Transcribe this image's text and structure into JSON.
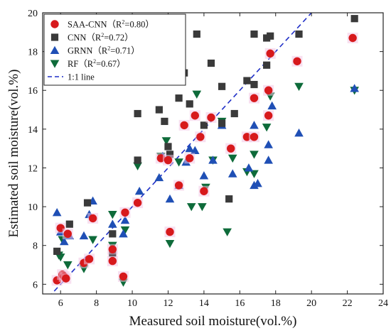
{
  "chart_data": {
    "type": "scatter",
    "xlabel": "Measured soil moisture(vol.%)",
    "ylabel": "Estimated soil moisture(vol.%)",
    "xlim": [
      5,
      24
    ],
    "ylim": [
      5.5,
      20
    ],
    "xticks": [
      "6",
      "8",
      "10",
      "12",
      "14",
      "16",
      "18",
      "20",
      "22",
      "24"
    ],
    "yticks": [
      "6",
      "8",
      "10",
      "12",
      "14",
      "16",
      "18",
      "20"
    ],
    "grid": false,
    "legend_position": "top-left",
    "reference_line": {
      "name": "1:1 line",
      "color": "#1f2fc7",
      "style": "dashed"
    },
    "series": [
      {
        "name": "SAA-CNN",
        "r2_label": "R",
        "r2_value": "=0.80）",
        "r2_prefix": "（",
        "marker": "circle",
        "color": "#d7191c",
        "points": [
          [
            5.8,
            6.2
          ],
          [
            6.0,
            8.9
          ],
          [
            6.1,
            6.5
          ],
          [
            6.2,
            6.4
          ],
          [
            6.3,
            6.3
          ],
          [
            6.4,
            8.6
          ],
          [
            7.3,
            7.1
          ],
          [
            7.6,
            7.3
          ],
          [
            7.8,
            9.4
          ],
          [
            8.9,
            7.2
          ],
          [
            8.9,
            7.8
          ],
          [
            9.5,
            6.4
          ],
          [
            9.6,
            9.7
          ],
          [
            10.3,
            10.2
          ],
          [
            11.6,
            12.5
          ],
          [
            12.0,
            12.4
          ],
          [
            12.1,
            8.7
          ],
          [
            12.6,
            11.1
          ],
          [
            12.9,
            14.2
          ],
          [
            13.2,
            12.5
          ],
          [
            13.5,
            14.7
          ],
          [
            13.8,
            13.6
          ],
          [
            14.0,
            10.8
          ],
          [
            14.4,
            14.6
          ],
          [
            15.5,
            13.0
          ],
          [
            16.4,
            13.6
          ],
          [
            16.8,
            15.6
          ],
          [
            16.8,
            13.6
          ],
          [
            17.6,
            16.0
          ],
          [
            17.6,
            14.7
          ],
          [
            17.7,
            17.9
          ],
          [
            19.2,
            17.5
          ],
          [
            22.3,
            18.7
          ]
        ]
      },
      {
        "name": "CNN",
        "r2_label": "R",
        "r2_value": "=0.72）",
        "r2_prefix": "（",
        "marker": "square",
        "color": "#3a3a3a",
        "points": [
          [
            5.8,
            7.7
          ],
          [
            6.5,
            9.1
          ],
          [
            7.5,
            10.2
          ],
          [
            8.9,
            7.6
          ],
          [
            8.9,
            8.6
          ],
          [
            10.3,
            12.4
          ],
          [
            10.3,
            14.8
          ],
          [
            11.5,
            15.0
          ],
          [
            11.8,
            14.4
          ],
          [
            12.0,
            13.1
          ],
          [
            12.1,
            12.7
          ],
          [
            12.6,
            15.6
          ],
          [
            12.9,
            16.9
          ],
          [
            13.2,
            15.3
          ],
          [
            13.6,
            18.9
          ],
          [
            14.0,
            14.2
          ],
          [
            14.4,
            17.4
          ],
          [
            15.0,
            14.3
          ],
          [
            15.0,
            16.2
          ],
          [
            15.4,
            10.4
          ],
          [
            15.7,
            14.8
          ],
          [
            16.4,
            16.5
          ],
          [
            16.8,
            18.9
          ],
          [
            16.8,
            16.3
          ],
          [
            17.5,
            17.3
          ],
          [
            17.5,
            18.7
          ],
          [
            17.7,
            18.8
          ],
          [
            19.3,
            18.9
          ],
          [
            22.4,
            19.7
          ]
        ]
      },
      {
        "name": "GRNN",
        "r2_label": "R",
        "r2_value": "=0.71）",
        "r2_prefix": "（",
        "marker": "triangle-up",
        "color": "#1f4fb5",
        "points": [
          [
            5.8,
            9.7
          ],
          [
            6.0,
            8.7
          ],
          [
            6.2,
            8.2
          ],
          [
            6.5,
            8.5
          ],
          [
            7.3,
            8.5
          ],
          [
            7.6,
            9.6
          ],
          [
            7.8,
            10.3
          ],
          [
            8.9,
            9.1
          ],
          [
            9.5,
            8.6
          ],
          [
            9.6,
            9.3
          ],
          [
            10.4,
            10.8
          ],
          [
            11.5,
            11.5
          ],
          [
            11.7,
            12.6
          ],
          [
            12.1,
            10.4
          ],
          [
            12.6,
            11.1
          ],
          [
            13.0,
            12.3
          ],
          [
            13.2,
            13.0
          ],
          [
            13.5,
            12.9
          ],
          [
            14.0,
            11.6
          ],
          [
            14.5,
            12.4
          ],
          [
            15.0,
            14.2
          ],
          [
            15.6,
            11.7
          ],
          [
            16.5,
            12.0
          ],
          [
            16.8,
            11.1
          ],
          [
            16.8,
            14.2
          ],
          [
            17.0,
            11.2
          ],
          [
            17.6,
            12.4
          ],
          [
            17.6,
            13.2
          ],
          [
            17.8,
            15.2
          ],
          [
            19.3,
            13.8
          ],
          [
            22.4,
            16.1
          ]
        ]
      },
      {
        "name": "RF",
        "r2_label": "R",
        "r2_value": "=0.67）",
        "r2_prefix": "（",
        "marker": "triangle-down",
        "color": "#0e6b3a",
        "points": [
          [
            5.9,
            7.5
          ],
          [
            6.0,
            7.4
          ],
          [
            6.1,
            8.3
          ],
          [
            6.4,
            7.0
          ],
          [
            7.3,
            6.8
          ],
          [
            7.8,
            8.3
          ],
          [
            8.9,
            8.0
          ],
          [
            8.9,
            9.6
          ],
          [
            9.5,
            6.1
          ],
          [
            9.6,
            8.8
          ],
          [
            10.3,
            12.1
          ],
          [
            11.6,
            12.6
          ],
          [
            11.9,
            13.4
          ],
          [
            12.1,
            8.1
          ],
          [
            12.6,
            12.3
          ],
          [
            13.3,
            10.0
          ],
          [
            13.6,
            15.8
          ],
          [
            13.9,
            10.0
          ],
          [
            14.1,
            11.0
          ],
          [
            14.5,
            12.4
          ],
          [
            15.0,
            14.4
          ],
          [
            15.3,
            8.7
          ],
          [
            15.6,
            12.5
          ],
          [
            16.4,
            11.8
          ],
          [
            16.8,
            11.7
          ],
          [
            16.8,
            12.7
          ],
          [
            17.5,
            14.1
          ],
          [
            17.7,
            15.7
          ],
          [
            19.3,
            16.2
          ],
          [
            22.4,
            16.0
          ]
        ]
      }
    ]
  }
}
